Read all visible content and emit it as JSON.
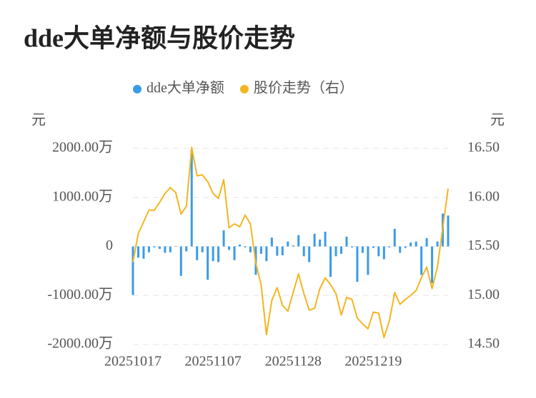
{
  "chart_data": {
    "type": "bar",
    "title": "dde大单净额与股价走势",
    "y_label": "元",
    "y2_label": "元",
    "categories": [
      "20251017",
      null,
      null,
      null,
      null,
      null,
      null,
      null,
      null,
      null,
      null,
      null,
      null,
      null,
      null,
      "20251107",
      null,
      null,
      null,
      null,
      null,
      null,
      null,
      null,
      null,
      null,
      null,
      null,
      null,
      null,
      "20251128",
      null,
      null,
      null,
      null,
      null,
      null,
      null,
      null,
      null,
      null,
      null,
      null,
      null,
      null,
      "20251219",
      null,
      null,
      null,
      null,
      null,
      null,
      null,
      null,
      null,
      null,
      null,
      null,
      null,
      null
    ],
    "series": [
      {
        "name": "dde大单净额",
        "color": "#3a9be8",
        "type": "bar",
        "values": [
          -990,
          -230,
          -250,
          -120,
          -20,
          -50,
          -130,
          -120,
          0,
          -600,
          -100,
          1980,
          -280,
          -120,
          -680,
          -300,
          -320,
          330,
          -70,
          -280,
          40,
          -20,
          -120,
          -580,
          -150,
          -300,
          180,
          -190,
          -180,
          100,
          20,
          230,
          -200,
          -320,
          260,
          140,
          300,
          -620,
          -200,
          -150,
          200,
          -20,
          -720,
          -130,
          -580,
          -30,
          -200,
          -260,
          -20,
          360,
          -130,
          -30,
          80,
          100,
          -580,
          170,
          -750,
          100,
          670,
          630
        ]
      },
      {
        "name": "股价走势（右）",
        "color": "#f4b51e",
        "type": "line",
        "axis": "y2",
        "values": [
          15.34,
          15.63,
          15.75,
          15.87,
          15.87,
          15.95,
          16.04,
          16.1,
          16.05,
          15.83,
          15.91,
          16.51,
          16.22,
          16.23,
          16.16,
          16.04,
          15.99,
          16.18,
          15.69,
          15.73,
          15.7,
          15.82,
          15.73,
          15.33,
          15.11,
          14.6,
          14.95,
          15.08,
          14.9,
          14.84,
          15.03,
          15.22,
          15.02,
          14.85,
          14.87,
          15.07,
          15.18,
          15.11,
          15.02,
          14.8,
          14.98,
          14.96,
          14.77,
          14.71,
          14.66,
          14.83,
          14.82,
          14.57,
          14.74,
          15.03,
          14.91,
          14.96,
          15.0,
          15.05,
          15.18,
          15.29,
          15.07,
          15.29,
          15.69,
          16.09
        ]
      }
    ],
    "ylim": [
      -2000,
      2000
    ],
    "yticks": [
      {
        "value": -2000,
        "label": "-2000.00万"
      },
      {
        "value": -1000,
        "label": "-1000.00万"
      },
      0,
      {
        "value": 1000,
        "label": "1000.00万"
      },
      {
        "value": 2000,
        "label": "2000.00万"
      }
    ],
    "y2lim": [
      14.5,
      16.5
    ],
    "y2ticks": [
      {
        "value": 14.5,
        "label": "14.50"
      },
      {
        "value": 15,
        "label": "15.00"
      },
      {
        "value": 15.5,
        "label": "15.50"
      },
      {
        "value": 16,
        "label": "16.00"
      },
      {
        "value": 16.5,
        "label": "16.50"
      }
    ],
    "grid": true,
    "legend": "top"
  }
}
